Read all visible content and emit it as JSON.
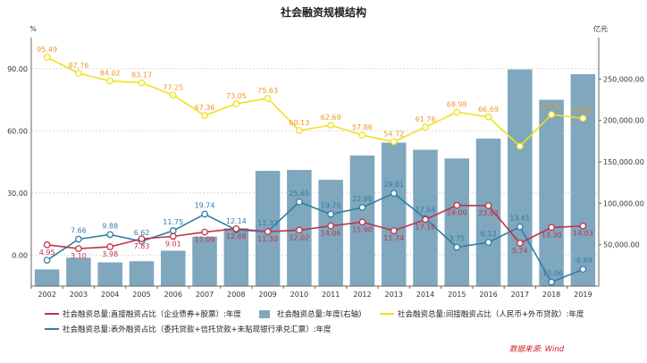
{
  "chart_data": {
    "type": "bar",
    "title": "社会融资规模结构",
    "left_unit": "%",
    "right_unit": "亿元",
    "left_ylim": [
      -15,
      105
    ],
    "left_ticks": [
      "90.00",
      "60.00",
      "30.00",
      "0.00"
    ],
    "left_tick_values": [
      90,
      60,
      30,
      0
    ],
    "right_ylim": [
      0,
      300000
    ],
    "right_ticks": [
      "250,000.00",
      "200,000.00",
      "150,000.00",
      "100,000.00",
      "50,000.00"
    ],
    "right_tick_values": [
      250000,
      200000,
      150000,
      100000,
      50000
    ],
    "categories": [
      "2002",
      "2003",
      "2004",
      "2005",
      "2006",
      "2007",
      "2008",
      "2009",
      "2010",
      "2011",
      "2012",
      "2013",
      "2014",
      "2015",
      "2016",
      "2017",
      "2018",
      "2019"
    ],
    "grid": true,
    "legend_position": "bottom",
    "colors": {
      "direct": "#c0334a",
      "total": "#7fa7bd",
      "indirect": "#f2e01a",
      "offbalance": "#2f7ea6",
      "indirect_label": "#f0972d"
    },
    "series": [
      {
        "key": "total",
        "name": "社会融资总量:年度(右轴)",
        "kind": "bar",
        "axis": "right",
        "values": [
          20112,
          34113,
          28629,
          30008,
          42696,
          59663,
          69802,
          139104,
          140191,
          128286,
          157631,
          173169,
          164571,
          154063,
          178022,
          261536,
          224920,
          255753
        ]
      },
      {
        "key": "direct",
        "name": "社会融资总量:直接融资占比（企业债券+股票）:年度",
        "kind": "line",
        "axis": "left",
        "values": [
          4.95,
          3.1,
          3.98,
          7.83,
          9.01,
          11.09,
          12.68,
          11.3,
          12.02,
          14.06,
          15.9,
          11.74,
          17.16,
          24.0,
          23.83,
          5.74,
          13.3,
          14.03
        ],
        "labels": [
          "4.95",
          "3.10",
          "3.98",
          "7.83",
          "9.01",
          "11.09",
          "12.68",
          "11.30",
          "12.02",
          "14.06",
          "15.90",
          "11.74",
          "17.16",
          "24.00",
          "23.83",
          "5.74",
          "13.30",
          "14.03"
        ]
      },
      {
        "key": "indirect",
        "name": "社会融资总量:间接融资占比（人民币+外币贷款）:年度",
        "kind": "line",
        "axis": "left",
        "values": [
          95.49,
          87.76,
          84.02,
          83.17,
          77.25,
          67.36,
          73.05,
          75.63,
          60.13,
          62.69,
          57.86,
          54.72,
          61.76,
          68.98,
          66.69,
          52.52,
          67.81,
          66.03
        ],
        "labels": [
          "95.49",
          "87.76",
          "84.02",
          "83.17",
          "77.25",
          "67.36",
          "73.05",
          "75.63",
          "60.13",
          "62.69",
          "57.86",
          "54.72",
          "61.76",
          "68.98",
          "66.69",
          "",
          "67.81",
          "66.03"
        ]
      },
      {
        "key": "offbalance",
        "name": "社会融资总量:表外融资占比（委托贷款+信托贷款+未贴现银行承兑汇票）:年度",
        "kind": "line",
        "axis": "left",
        "values": [
          -2.5,
          7.66,
          9.88,
          6.62,
          11.75,
          19.74,
          12.14,
          11.32,
          25.65,
          19.7,
          22.96,
          29.81,
          17.64,
          3.75,
          6.13,
          13.61,
          -13.06,
          -6.89
        ],
        "labels": [
          "",
          "7.66",
          "9.88",
          "6.62",
          "11.75",
          "19.74",
          "12.14",
          "11.32",
          "25.65",
          "19.70",
          "22.96",
          "29.81",
          "17.64",
          "3.75",
          "6.13",
          "13.61",
          "-13.06",
          "-6.89"
        ]
      }
    ],
    "legend": [
      {
        "key": "direct",
        "label": "社会融资总量:直接融资占比（企业债券+股票）:年度",
        "marker": "line"
      },
      {
        "key": "total",
        "label": "社会融资总量:年度(右轴)",
        "marker": "box"
      },
      {
        "key": "indirect",
        "label": "社会融资总量:间接融资占比（人民币+外币贷款）:年度",
        "marker": "line"
      },
      {
        "key": "offbalance",
        "label": "社会融资总量:表外融资占比（委托贷款+信托贷款+未贴现银行承兑汇票）:年度",
        "marker": "line"
      }
    ],
    "source": "数据来源: Wind"
  }
}
